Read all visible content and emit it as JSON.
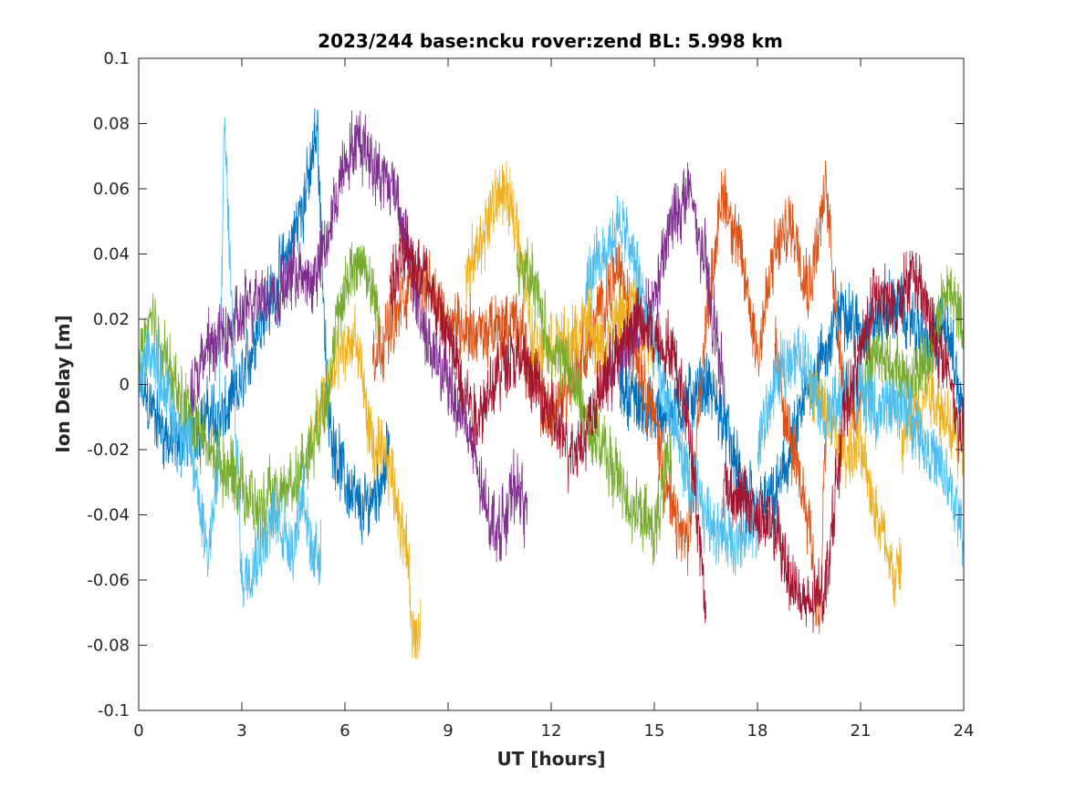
{
  "chart_data": {
    "type": "line",
    "title": "2023/244 base:ncku rover:zend BL:  5.998 km",
    "xlabel": "UT [hours]",
    "ylabel": "Ion Delay [m]",
    "xlim": [
      0,
      24
    ],
    "ylim": [
      -0.1,
      0.1
    ],
    "xticks": [
      0,
      3,
      6,
      9,
      12,
      15,
      18,
      21,
      24
    ],
    "xtick_labels": [
      "0",
      "3",
      "6",
      "9",
      "12",
      "15",
      "18",
      "21",
      "24"
    ],
    "yticks": [
      -0.1,
      -0.08,
      -0.06,
      -0.04,
      -0.02,
      0,
      0.02,
      0.04,
      0.06,
      0.08,
      0.1
    ],
    "ytick_labels": [
      "-0.1",
      "-0.08",
      "-0.06",
      "-0.04",
      "-0.02",
      "0",
      "0.02",
      "0.04",
      "0.06",
      "0.08",
      "0.1"
    ],
    "grid": false,
    "legend": false,
    "series": [
      {
        "color": "#0072BD",
        "x": [
          0.0,
          0.5,
          1.0,
          1.5,
          2.0,
          2.5,
          3.0,
          3.5,
          4.0,
          4.5,
          5.0,
          5.2,
          5.5,
          6.0,
          6.5,
          7.0,
          7.3
        ],
        "y": [
          0.0,
          -0.01,
          -0.02,
          -0.015,
          -0.01,
          -0.01,
          0.0,
          0.02,
          0.03,
          0.045,
          0.065,
          0.08,
          -0.01,
          -0.03,
          -0.04,
          -0.03,
          -0.02
        ]
      },
      {
        "color": "#0072BD",
        "x": [
          14.0,
          15.0,
          16.0,
          16.5,
          17.0,
          17.5,
          18.0,
          18.5,
          19.0,
          19.5,
          20.0,
          20.5,
          21.0,
          21.5,
          22.0,
          22.5,
          23.0,
          23.5,
          24.0
        ],
        "y": [
          0.0,
          -0.01,
          -0.005,
          0.0,
          -0.01,
          -0.03,
          -0.04,
          -0.035,
          -0.02,
          0.0,
          0.01,
          0.025,
          0.015,
          0.02,
          0.025,
          0.02,
          0.01,
          0.02,
          -0.01
        ]
      },
      {
        "color": "#D95319",
        "x": [
          6.8,
          7.5,
          8.0,
          9.0,
          10.0,
          11.0,
          11.5,
          12.0,
          12.5,
          13.0,
          13.5,
          14.0,
          14.5,
          15.0,
          15.5,
          16.0,
          16.5,
          17.0,
          17.5,
          18.0,
          18.5,
          19.0,
          19.5,
          20.0,
          20.5,
          21.0
        ],
        "y": [
          0.01,
          0.02,
          0.035,
          0.02,
          0.015,
          0.02,
          0.0,
          -0.01,
          0.0,
          0.01,
          0.025,
          0.035,
          0.01,
          -0.01,
          -0.04,
          -0.05,
          0.02,
          0.06,
          0.04,
          0.01,
          0.04,
          0.05,
          0.03,
          0.06,
          0.0,
          -0.01
        ]
      },
      {
        "color": "#D95319",
        "x": [
          18.5,
          19.0,
          19.5,
          19.8,
          20.0
        ],
        "y": [
          0.01,
          -0.02,
          -0.04,
          -0.075,
          -0.01
        ]
      },
      {
        "color": "#EDB120",
        "x": [
          5.0,
          5.5,
          6.0,
          6.3,
          6.8,
          7.3,
          7.8,
          8.0,
          8.2
        ],
        "y": [
          -0.02,
          0.0,
          0.01,
          0.015,
          -0.02,
          -0.025,
          -0.05,
          -0.08,
          -0.07
        ]
      },
      {
        "color": "#EDB120",
        "x": [
          9.5,
          10.0,
          10.5,
          11.0,
          11.5,
          12.0,
          12.5,
          13.0,
          13.5,
          14.0,
          14.5,
          15.0
        ],
        "y": [
          0.03,
          0.045,
          0.06,
          0.05,
          0.01,
          0.015,
          0.01,
          0.02,
          0.01,
          0.02,
          0.025,
          0.01
        ]
      },
      {
        "color": "#EDB120",
        "x": [
          19.5,
          20.0,
          20.5,
          21.0,
          21.5,
          22.0,
          22.2
        ],
        "y": [
          0.0,
          -0.01,
          -0.02,
          -0.02,
          -0.04,
          -0.06,
          -0.055
        ]
      },
      {
        "color": "#EDB120",
        "x": [
          22.2,
          22.5,
          23.0,
          23.5,
          24.0
        ],
        "y": [
          -0.02,
          -0.01,
          0.0,
          -0.01,
          -0.02
        ]
      },
      {
        "color": "#7E2F8E",
        "x": [
          1.5,
          2.0,
          2.5,
          3.0,
          3.5,
          4.0,
          4.5,
          5.0,
          5.5,
          6.0,
          6.5,
          7.0,
          7.5,
          8.0,
          8.5,
          9.0,
          9.5,
          10.0,
          10.5,
          11.0,
          11.3
        ],
        "y": [
          0.0,
          0.01,
          0.015,
          0.02,
          0.03,
          0.025,
          0.035,
          0.03,
          0.045,
          0.07,
          0.075,
          0.065,
          0.06,
          0.03,
          0.01,
          0.0,
          -0.01,
          -0.035,
          -0.045,
          -0.03,
          -0.04
        ]
      },
      {
        "color": "#7E2F8E",
        "x": [
          13.5,
          14.0,
          14.5,
          15.0,
          15.5,
          16.0,
          16.5,
          17.0
        ],
        "y": [
          0.0,
          0.01,
          0.015,
          0.025,
          0.05,
          0.06,
          0.035,
          0.0
        ]
      },
      {
        "color": "#77AC30",
        "x": [
          0.0,
          0.3,
          0.6,
          1.0,
          1.5,
          2.0,
          2.5,
          3.0,
          3.5,
          4.0,
          4.5,
          5.0,
          5.5,
          6.0,
          6.5,
          7.0
        ],
        "y": [
          0.005,
          0.02,
          0.015,
          0.0,
          -0.01,
          -0.02,
          -0.025,
          -0.03,
          -0.04,
          -0.035,
          -0.03,
          -0.02,
          0.0,
          0.03,
          0.04,
          0.02
        ]
      },
      {
        "color": "#77AC30",
        "x": [
          11.0,
          11.5,
          12.0,
          12.5,
          13.0,
          13.5,
          14.0,
          14.5,
          15.0,
          15.5
        ],
        "y": [
          0.04,
          0.03,
          0.01,
          0.005,
          -0.01,
          -0.02,
          -0.03,
          -0.04,
          -0.045,
          -0.02
        ]
      },
      {
        "color": "#77AC30",
        "x": [
          21.0,
          21.5,
          22.0,
          22.5,
          23.0,
          23.5,
          24.0
        ],
        "y": [
          0.0,
          0.01,
          0.005,
          0.0,
          0.01,
          0.03,
          0.02
        ]
      },
      {
        "color": "#4DBEEE",
        "x": [
          0.0,
          0.3,
          0.6,
          1.0,
          1.5,
          2.0,
          2.3,
          2.5,
          3.0,
          3.5,
          4.0,
          4.5,
          4.8,
          5.0,
          5.3
        ],
        "y": [
          0.0,
          0.01,
          0.005,
          -0.01,
          -0.02,
          -0.05,
          -0.03,
          0.08,
          -0.06,
          -0.05,
          -0.04,
          -0.05,
          -0.03,
          -0.055,
          -0.05
        ]
      },
      {
        "color": "#4DBEEE",
        "x": [
          13.0,
          13.5,
          14.0,
          14.5,
          15.0,
          15.5,
          16.0,
          16.5,
          17.0,
          17.5,
          18.0
        ],
        "y": [
          0.03,
          0.04,
          0.05,
          0.035,
          0.01,
          -0.01,
          -0.03,
          -0.04,
          -0.045,
          -0.05,
          -0.04
        ]
      },
      {
        "color": "#4DBEEE",
        "x": [
          18.0,
          18.5,
          19.0,
          19.5,
          20.0,
          21.0,
          21.5,
          22.0,
          22.5,
          23.0,
          23.5,
          24.0
        ],
        "y": [
          -0.02,
          0.0,
          0.01,
          0.005,
          -0.01,
          0.0,
          -0.01,
          -0.005,
          -0.01,
          -0.02,
          -0.03,
          -0.045
        ]
      },
      {
        "color": "#A2142F",
        "x": [
          7.3,
          7.8,
          8.3,
          8.8,
          9.3,
          9.8,
          10.3,
          10.8,
          11.3,
          11.8,
          12.0,
          12.5,
          13.0,
          13.5,
          14.0,
          14.5,
          15.0,
          15.5,
          16.0,
          16.5
        ],
        "y": [
          0.03,
          0.04,
          0.035,
          0.02,
          0.005,
          -0.01,
          0.0,
          0.01,
          0.005,
          -0.005,
          -0.01,
          -0.02,
          -0.015,
          0.0,
          0.01,
          0.02,
          0.015,
          0.01,
          -0.01,
          -0.07
        ]
      },
      {
        "color": "#A2142F",
        "x": [
          17.0,
          17.5,
          18.0,
          18.5,
          19.0,
          19.5,
          20.0,
          20.5,
          21.0,
          21.5,
          22.0,
          22.5,
          23.0,
          23.5,
          24.0
        ],
        "y": [
          -0.03,
          -0.035,
          -0.04,
          -0.045,
          -0.06,
          -0.07,
          -0.06,
          -0.01,
          0.01,
          0.03,
          0.02,
          0.035,
          0.02,
          0.005,
          -0.02
        ]
      }
    ]
  }
}
